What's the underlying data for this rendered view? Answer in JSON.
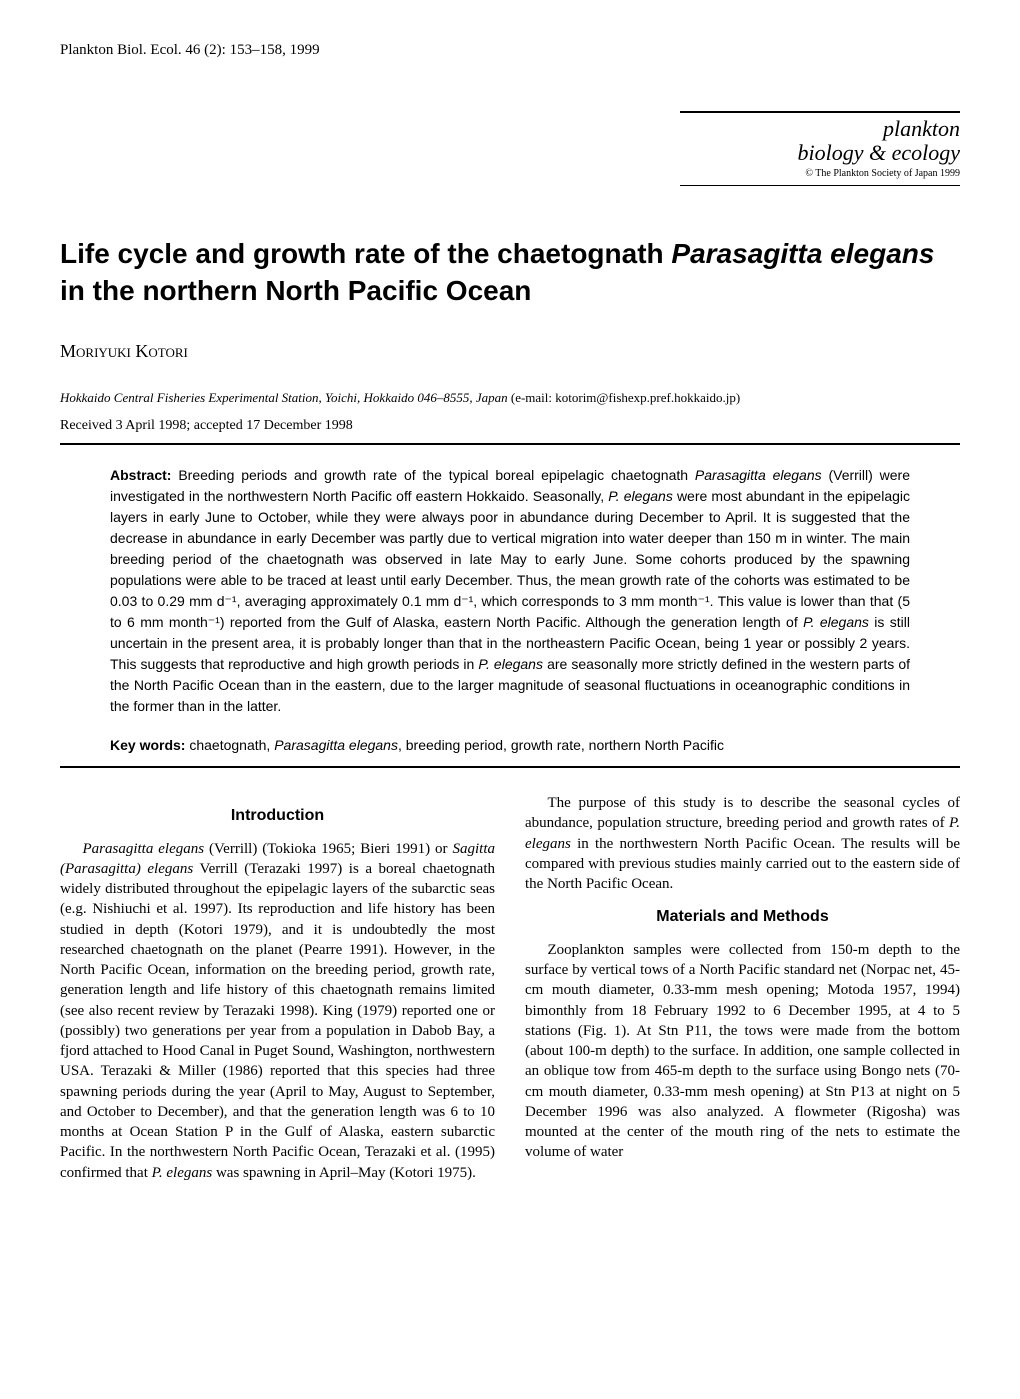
{
  "header": {
    "citation": "Plankton Biol. Ecol. 46 (2): 153–158, 1999"
  },
  "journal_box": {
    "line1": "plankton",
    "line2": "biology & ecology",
    "copyright": "© The Plankton Society of Japan 1999"
  },
  "article": {
    "title_prefix": "Life cycle and growth rate of the chaetognath ",
    "title_species": "Parasagitta elegans",
    "title_suffix": " in the northern North Pacific Ocean",
    "author": "Moriyuki Kotori",
    "affiliation": "Hokkaido Central Fisheries Experimental Station, Yoichi, Hokkaido 046–8555, Japan",
    "email": " (e-mail: kotorim@fishexp.pref.hokkaido.jp)",
    "received": "Received 3 April 1998; accepted 17 December 1998"
  },
  "abstract": {
    "label": "Abstract: ",
    "text_1": "Breeding periods and growth rate of the typical boreal epipelagic chaetognath ",
    "species_1": "Parasagitta elegans",
    "text_2": " (Verrill) were investigated in the northwestern North Pacific off eastern Hokkaido. Seasonally, ",
    "species_2": "P. elegans",
    "text_3": " were most abundant in the epipelagic layers in early June to October, while they were always poor in abundance during December to April. It is suggested that the decrease in abundance in early December was partly due to vertical migration into water deeper than 150 m in winter. The main breeding period of the chaetognath was observed in late May to early June. Some cohorts produced by the spawning populations were able to be traced at least until early December. Thus, the mean growth rate of the cohorts was estimated to be 0.03 to 0.29 mm d⁻¹, averaging approximately 0.1 mm d⁻¹, which corresponds to 3 mm month⁻¹. This value is lower than that (5 to 6 mm month⁻¹) reported from the Gulf of Alaska, eastern North Pacific. Although the generation length of ",
    "species_3": "P. elegans",
    "text_4": " is still uncertain in the present area, it is probably longer than that in the northeastern Pacific Ocean, being 1 year or possibly 2 years. This suggests that reproductive and high growth periods in ",
    "species_4": "P. elegans",
    "text_5": " are seasonally more strictly defined in the western parts of the North Pacific Ocean than in the eastern, due to the larger magnitude of seasonal fluctuations in oceanographic conditions in the former than in the latter."
  },
  "keywords": {
    "label": "Key words: ",
    "text_1": "chaetognath, ",
    "species": "Parasagitta elegans",
    "text_2": ", breeding period, growth rate, northern North Pacific"
  },
  "sections": {
    "intro_heading": "Introduction",
    "intro_p1_species1": "Parasagitta elegans",
    "intro_p1_text1": " (Verrill) (Tokioka 1965; Bieri 1991) or ",
    "intro_p1_species2": "Sagitta (Parasagitta) elegans",
    "intro_p1_text2": " Verrill (Terazaki 1997) is a boreal chaetognath widely distributed throughout the epipelagic layers of the subarctic seas (e.g. Nishiuchi et al. 1997). Its reproduction and life history has been studied in depth (Kotori 1979), and it is undoubtedly the most researched chaetognath on the planet (Pearre 1991). However, in the North Pacific Ocean, information on the breeding period, growth rate, generation length and life history of this chaetognath remains limited (see also recent review by Terazaki 1998). King (1979) reported one or (possibly) two generations per year from a population in Dabob Bay, a fjord attached to Hood Canal in Puget Sound, Washington, northwestern USA. Terazaki & Miller (1986) reported that this species had three spawning periods during the year (April to May, August to September, and October to December), and that the generation length was 6 to 10 months at Ocean Station P in the Gulf of Alaska, eastern subarctic Pacific. In the northwestern North Pacific Ocean, Terazaki et al. (1995) confirmed that ",
    "intro_p1_species3": "P. elegans",
    "intro_p1_text3": " was spawning in April–May (Kotori 1975).",
    "intro_p2_text1": "The purpose of this study is to describe the seasonal cycles of abundance, population structure, breeding period and growth rates of ",
    "intro_p2_species1": "P. elegans",
    "intro_p2_text2": " in the northwestern North Pacific Ocean. The results will be compared with previous studies mainly carried out to the eastern side of the North Pacific Ocean.",
    "methods_heading": "Materials and Methods",
    "methods_p1": "Zooplankton samples were collected from 150-m depth to the surface by vertical tows of a North Pacific standard net (Norpac net, 45-cm mouth diameter, 0.33-mm mesh opening; Motoda 1957, 1994) bimonthly from 18 February 1992 to 6 December 1995, at 4 to 5 stations (Fig. 1). At Stn P11, the tows were made from the bottom (about 100-m depth) to the surface. In addition, one sample collected in an oblique tow from 465-m depth to the surface using Bongo nets (70-cm mouth diameter, 0.33-mm mesh opening) at Stn P13 at night on 5 December 1996 was also analyzed. A flowmeter (Rigosha) was mounted at the center of the mouth ring of the nets to estimate the volume of water"
  }
}
